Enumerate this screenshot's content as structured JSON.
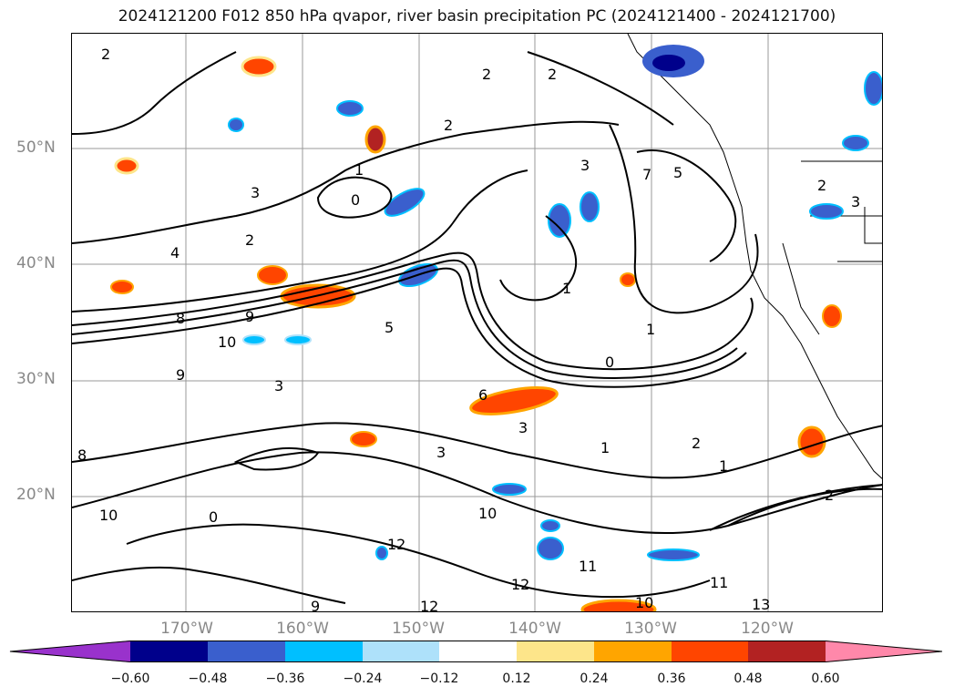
{
  "title": "2024121200 F012 850 hPa qvapor, river basin precipitation PC (2024121400 - 2024121700)",
  "lat_labels": [
    "50°N",
    "40°N",
    "30°N",
    "20°N"
  ],
  "lon_labels": [
    "170°W",
    "160°W",
    "150°W",
    "140°W",
    "130°W",
    "120°W"
  ],
  "colorbar": {
    "ticks": [
      "−0.60",
      "−0.48",
      "−0.36",
      "−0.24",
      "−0.12",
      "0.12",
      "0.24",
      "0.36",
      "0.48",
      "0.60"
    ],
    "colors": [
      "#9932cc",
      "#00008b",
      "#3a5fcd",
      "#00bfff",
      "#aee1fa",
      "#ffffff",
      "#fde58a",
      "#ffa500",
      "#ff4500",
      "#b22222",
      "#ff88aa"
    ]
  },
  "contour_labels": [
    "2",
    "2",
    "2",
    "2",
    "1",
    "0",
    "3",
    "2",
    "4",
    "3",
    "1",
    "9",
    "8",
    "10",
    "9",
    "5",
    "3",
    "1",
    "0",
    "7",
    "3",
    "2",
    "6",
    "3",
    "1",
    "2",
    "0",
    "1",
    "10",
    "11",
    "12",
    "12",
    "10",
    "13",
    "11",
    "12",
    "9",
    "8",
    "10",
    "5",
    "3",
    "2"
  ]
}
